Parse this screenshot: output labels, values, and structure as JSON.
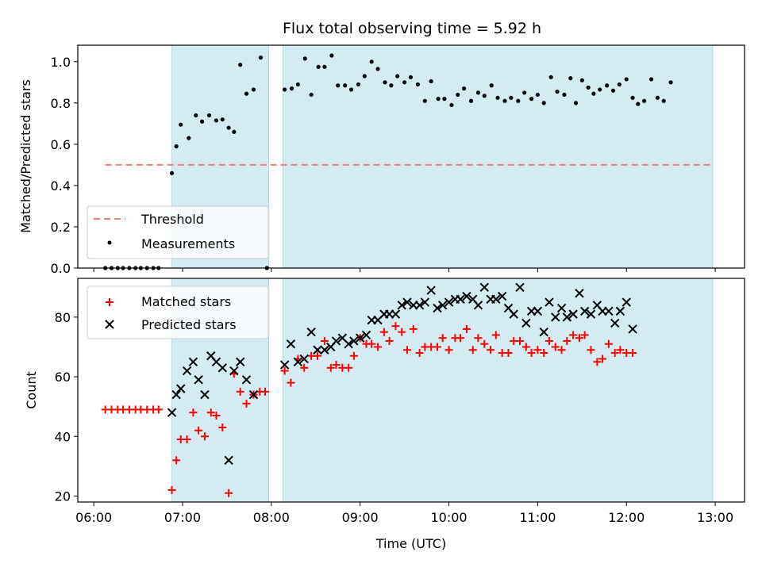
{
  "chart_data": {
    "title": "Flux total observing time = 5.92 h",
    "xlabel": "Time (UTC)",
    "x_ticks": [
      "06:00",
      "07:00",
      "08:00",
      "09:00",
      "10:00",
      "11:00",
      "12:00",
      "13:00"
    ],
    "x_range_hours": [
      5.82,
      13.33
    ],
    "shaded_intervals": [
      [
        6.88,
        7.97
      ],
      [
        8.13,
        12.97
      ]
    ],
    "shade_color": "#add8e6",
    "top": {
      "type": "scatter",
      "ylabel": "Matched/Predicted stars",
      "ylim": [
        0,
        1.08
      ],
      "y_ticks": [
        "0.0",
        "0.2",
        "0.4",
        "0.6",
        "0.8",
        "1.0"
      ],
      "legend": {
        "position": "lower-left",
        "entries": [
          "Threshold",
          "Measurements"
        ]
      },
      "threshold": {
        "name": "Threshold",
        "value": 0.5,
        "x_start": 6.13,
        "x_end": 12.97,
        "color": "#f08080"
      },
      "series": [
        {
          "name": "Measurements",
          "color": "#000000",
          "points": [
            [
              6.13,
              0
            ],
            [
              6.2,
              0
            ],
            [
              6.27,
              0
            ],
            [
              6.33,
              0
            ],
            [
              6.4,
              0
            ],
            [
              6.47,
              0
            ],
            [
              6.53,
              0
            ],
            [
              6.6,
              0
            ],
            [
              6.67,
              0
            ],
            [
              6.73,
              0
            ],
            [
              6.88,
              0.46
            ],
            [
              6.93,
              0.59
            ],
            [
              6.98,
              0.695
            ],
            [
              7.07,
              0.63
            ],
            [
              7.15,
              0.74
            ],
            [
              7.22,
              0.71
            ],
            [
              7.3,
              0.74
            ],
            [
              7.38,
              0.715
            ],
            [
              7.45,
              0.72
            ],
            [
              7.52,
              0.68
            ],
            [
              7.58,
              0.66
            ],
            [
              7.65,
              0.985
            ],
            [
              7.72,
              0.845
            ],
            [
              7.8,
              0.865
            ],
            [
              7.88,
              1.02
            ],
            [
              7.95,
              0
            ],
            [
              8.15,
              0.865
            ],
            [
              8.23,
              0.87
            ],
            [
              8.3,
              0.89
            ],
            [
              8.38,
              1.015
            ],
            [
              8.45,
              0.84
            ],
            [
              8.53,
              0.975
            ],
            [
              8.6,
              0.975
            ],
            [
              8.68,
              1.03
            ],
            [
              8.75,
              0.885
            ],
            [
              8.83,
              0.885
            ],
            [
              8.9,
              0.865
            ],
            [
              8.98,
              0.89
            ],
            [
              9.05,
              0.93
            ],
            [
              9.13,
              1.0
            ],
            [
              9.2,
              0.965
            ],
            [
              9.28,
              0.9
            ],
            [
              9.35,
              0.885
            ],
            [
              9.42,
              0.93
            ],
            [
              9.5,
              0.9
            ],
            [
              9.57,
              0.925
            ],
            [
              9.65,
              0.89
            ],
            [
              9.73,
              0.81
            ],
            [
              9.8,
              0.905
            ],
            [
              9.88,
              0.82
            ],
            [
              9.95,
              0.82
            ],
            [
              10.03,
              0.79
            ],
            [
              10.1,
              0.84
            ],
            [
              10.17,
              0.87
            ],
            [
              10.25,
              0.81
            ],
            [
              10.33,
              0.85
            ],
            [
              10.4,
              0.835
            ],
            [
              10.48,
              0.885
            ],
            [
              10.55,
              0.825
            ],
            [
              10.63,
              0.81
            ],
            [
              10.7,
              0.825
            ],
            [
              10.78,
              0.81
            ],
            [
              10.85,
              0.85
            ],
            [
              10.93,
              0.82
            ],
            [
              11.0,
              0.84
            ],
            [
              11.07,
              0.8
            ],
            [
              11.15,
              0.925
            ],
            [
              11.22,
              0.855
            ],
            [
              11.3,
              0.84
            ],
            [
              11.37,
              0.92
            ],
            [
              11.43,
              0.8
            ],
            [
              11.5,
              0.91
            ],
            [
              11.57,
              0.875
            ],
            [
              11.63,
              0.845
            ],
            [
              11.7,
              0.865
            ],
            [
              11.78,
              0.885
            ],
            [
              11.85,
              0.86
            ],
            [
              11.92,
              0.89
            ],
            [
              12.0,
              0.915
            ],
            [
              12.07,
              0.825
            ],
            [
              12.13,
              0.795
            ],
            [
              12.2,
              0.81
            ],
            [
              12.28,
              0.915
            ],
            [
              12.35,
              0.825
            ],
            [
              12.42,
              0.81
            ],
            [
              12.5,
              0.9
            ]
          ]
        }
      ]
    },
    "bottom": {
      "type": "scatter",
      "ylabel": "Count",
      "ylim": [
        18,
        93
      ],
      "y_ticks": [
        "20",
        "40",
        "60",
        "80"
      ],
      "legend": {
        "position": "upper-left",
        "entries": [
          "Matched stars",
          "Predicted stars"
        ]
      },
      "series": [
        {
          "name": "Matched stars",
          "color": "#ff0000",
          "marker": "plus",
          "points": [
            [
              6.13,
              49
            ],
            [
              6.2,
              49
            ],
            [
              6.27,
              49
            ],
            [
              6.33,
              49
            ],
            [
              6.4,
              49
            ],
            [
              6.47,
              49
            ],
            [
              6.53,
              49
            ],
            [
              6.6,
              49
            ],
            [
              6.67,
              49
            ],
            [
              6.73,
              49
            ],
            [
              6.88,
              22
            ],
            [
              6.93,
              32
            ],
            [
              6.98,
              39
            ],
            [
              7.05,
              39
            ],
            [
              7.12,
              48
            ],
            [
              7.18,
              42
            ],
            [
              7.25,
              40
            ],
            [
              7.32,
              48
            ],
            [
              7.38,
              47
            ],
            [
              7.45,
              43
            ],
            [
              7.52,
              21
            ],
            [
              7.58,
              61
            ],
            [
              7.65,
              55
            ],
            [
              7.72,
              51
            ],
            [
              7.8,
              54
            ],
            [
              7.87,
              55
            ],
            [
              7.93,
              55
            ],
            [
              8.15,
              62
            ],
            [
              8.22,
              58
            ],
            [
              8.3,
              66
            ],
            [
              8.37,
              63
            ],
            [
              8.45,
              67
            ],
            [
              8.52,
              67
            ],
            [
              8.6,
              72
            ],
            [
              8.67,
              63
            ],
            [
              8.73,
              64
            ],
            [
              8.8,
              63
            ],
            [
              8.87,
              63
            ],
            [
              8.93,
              67
            ],
            [
              9.0,
              73
            ],
            [
              9.07,
              71
            ],
            [
              9.13,
              71
            ],
            [
              9.2,
              70
            ],
            [
              9.27,
              75
            ],
            [
              9.33,
              72
            ],
            [
              9.4,
              77
            ],
            [
              9.47,
              75
            ],
            [
              9.53,
              69
            ],
            [
              9.6,
              76
            ],
            [
              9.67,
              68
            ],
            [
              9.73,
              70
            ],
            [
              9.8,
              70
            ],
            [
              9.87,
              70
            ],
            [
              9.93,
              73
            ],
            [
              10.0,
              69
            ],
            [
              10.07,
              73
            ],
            [
              10.13,
              73
            ],
            [
              10.2,
              76
            ],
            [
              10.27,
              69
            ],
            [
              10.33,
              73
            ],
            [
              10.4,
              71
            ],
            [
              10.47,
              69
            ],
            [
              10.53,
              74
            ],
            [
              10.6,
              68
            ],
            [
              10.67,
              68
            ],
            [
              10.73,
              72
            ],
            [
              10.8,
              72
            ],
            [
              10.87,
              70
            ],
            [
              10.93,
              68
            ],
            [
              11.0,
              69
            ],
            [
              11.07,
              68
            ],
            [
              11.13,
              72
            ],
            [
              11.2,
              70
            ],
            [
              11.27,
              69
            ],
            [
              11.33,
              72
            ],
            [
              11.4,
              74
            ],
            [
              11.47,
              73
            ],
            [
              11.53,
              74
            ],
            [
              11.6,
              69
            ],
            [
              11.67,
              65
            ],
            [
              11.73,
              66
            ],
            [
              11.8,
              71
            ],
            [
              11.87,
              68
            ],
            [
              11.93,
              69
            ],
            [
              12.0,
              68
            ],
            [
              12.07,
              68
            ]
          ]
        },
        {
          "name": "Predicted stars",
          "color": "#000000",
          "marker": "x",
          "points": [
            [
              6.88,
              48
            ],
            [
              6.93,
              54
            ],
            [
              6.98,
              56
            ],
            [
              7.05,
              62
            ],
            [
              7.12,
              65
            ],
            [
              7.18,
              59
            ],
            [
              7.25,
              54
            ],
            [
              7.32,
              67
            ],
            [
              7.38,
              65
            ],
            [
              7.45,
              63
            ],
            [
              7.52,
              32
            ],
            [
              7.58,
              62
            ],
            [
              7.65,
              65
            ],
            [
              7.72,
              59
            ],
            [
              7.8,
              54
            ],
            [
              8.15,
              64
            ],
            [
              8.22,
              71
            ],
            [
              8.3,
              65
            ],
            [
              8.37,
              66
            ],
            [
              8.45,
              75
            ],
            [
              8.52,
              69
            ],
            [
              8.6,
              69
            ],
            [
              8.67,
              70
            ],
            [
              8.73,
              72
            ],
            [
              8.8,
              73
            ],
            [
              8.87,
              71
            ],
            [
              8.93,
              72
            ],
            [
              9.0,
              73
            ],
            [
              9.07,
              74
            ],
            [
              9.13,
              79
            ],
            [
              9.2,
              79
            ],
            [
              9.27,
              81
            ],
            [
              9.33,
              81
            ],
            [
              9.4,
              81
            ],
            [
              9.47,
              84
            ],
            [
              9.53,
              85
            ],
            [
              9.6,
              84
            ],
            [
              9.67,
              84
            ],
            [
              9.73,
              85
            ],
            [
              9.8,
              89
            ],
            [
              9.87,
              83
            ],
            [
              9.93,
              84
            ],
            [
              10.0,
              85
            ],
            [
              10.07,
              86
            ],
            [
              10.13,
              86
            ],
            [
              10.2,
              87
            ],
            [
              10.27,
              86
            ],
            [
              10.33,
              84
            ],
            [
              10.4,
              90
            ],
            [
              10.47,
              86
            ],
            [
              10.53,
              86
            ],
            [
              10.6,
              87
            ],
            [
              10.67,
              83
            ],
            [
              10.73,
              81
            ],
            [
              10.8,
              90
            ],
            [
              10.87,
              78
            ],
            [
              10.93,
              82
            ],
            [
              11.0,
              82
            ],
            [
              11.07,
              75
            ],
            [
              11.13,
              85
            ],
            [
              11.2,
              80
            ],
            [
              11.27,
              83
            ],
            [
              11.33,
              80
            ],
            [
              11.4,
              81
            ],
            [
              11.47,
              88
            ],
            [
              11.53,
              82
            ],
            [
              11.6,
              81
            ],
            [
              11.67,
              84
            ],
            [
              11.73,
              82
            ],
            [
              11.8,
              82
            ],
            [
              11.87,
              78
            ],
            [
              11.93,
              82
            ],
            [
              12.0,
              85
            ],
            [
              12.07,
              76
            ]
          ]
        }
      ]
    }
  }
}
